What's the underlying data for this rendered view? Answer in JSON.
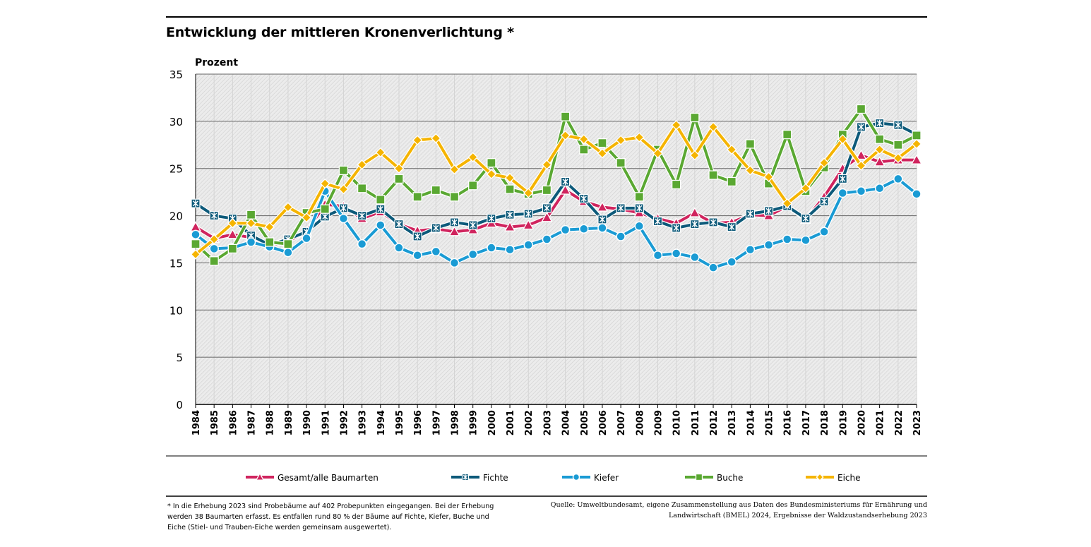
{
  "title": "Entwicklung der mittleren Kronenverlichtung *",
  "footnote": "* In die Erhebung 2023 sind Probebäume auf 402 Probepunkten eingegangen. Bei der Erhebung werden 38 Baumarten erfasst. Es entfallen rund 80 % der Bäume auf Fichte, Kiefer, Buche und Eiche (Stiel- und Trauben-Eiche werden gemeinsam ausgewertet).",
  "source": "Quelle: Umweltbundesamt, eigene Zusammenstellung aus Daten des Bundesministeriums für Ernährung und Landwirtschaft (BMEL) 2024, Ergebnisse der Waldzustandserhebung 2023",
  "chart_data": {
    "type": "line",
    "ylabel": "Prozent",
    "ylim": [
      0,
      35
    ],
    "yticks": [
      0,
      5,
      10,
      15,
      20,
      25,
      30,
      35
    ],
    "grid": true,
    "legend_position": "bottom",
    "x": [
      "1984",
      "1985",
      "1986",
      "1987",
      "1988",
      "1989",
      "1990",
      "1991",
      "1992",
      "1993",
      "1994",
      "1995",
      "1996",
      "1997",
      "1998",
      "1999",
      "2000",
      "2001",
      "2002",
      "2003",
      "2004",
      "2005",
      "2006",
      "2007",
      "2008",
      "2009",
      "2010",
      "2011",
      "2012",
      "2013",
      "2014",
      "2015",
      "2016",
      "2017",
      "2018",
      "2019",
      "2020",
      "2021",
      "2022",
      "2023"
    ],
    "series": [
      {
        "name": "Gesamt/alle Baumarten",
        "color": "#d0245e",
        "marker": "triangle",
        "values": [
          18.8,
          17.6,
          18.0,
          17.7,
          16.8,
          17.3,
          18.3,
          21.2,
          21.0,
          19.7,
          20.4,
          19.1,
          18.4,
          18.6,
          18.3,
          18.5,
          19.2,
          18.8,
          19.0,
          19.8,
          22.7,
          21.5,
          20.9,
          20.7,
          20.3,
          19.7,
          19.2,
          20.3,
          19.2,
          19.3,
          20.1,
          20.0,
          21.0,
          19.6,
          22.0,
          25.0,
          26.4,
          25.7,
          25.9,
          25.9
        ]
      },
      {
        "name": "Fichte",
        "color": "#0d5a7a",
        "marker": "star",
        "values": [
          21.3,
          20.0,
          19.7,
          17.9,
          16.9,
          17.5,
          18.3,
          19.9,
          20.8,
          20.0,
          20.7,
          19.1,
          17.8,
          18.7,
          19.3,
          19.0,
          19.7,
          20.1,
          20.2,
          20.8,
          23.6,
          21.8,
          19.6,
          20.8,
          20.8,
          19.4,
          18.7,
          19.1,
          19.3,
          18.8,
          20.2,
          20.5,
          21.0,
          19.7,
          21.5,
          23.9,
          29.4,
          29.8,
          29.6,
          28.6
        ]
      },
      {
        "name": "Kiefer",
        "color": "#1a9bd4",
        "marker": "circle",
        "values": [
          18.0,
          16.5,
          16.6,
          17.2,
          16.7,
          16.1,
          17.6,
          22.6,
          19.7,
          17.0,
          19.0,
          16.6,
          15.8,
          16.2,
          15.0,
          15.9,
          16.6,
          16.4,
          16.9,
          17.5,
          18.5,
          18.6,
          18.7,
          17.8,
          18.9,
          15.8,
          16.0,
          15.6,
          14.5,
          15.1,
          16.4,
          16.9,
          17.5,
          17.4,
          18.3,
          22.4,
          22.6,
          22.9,
          23.9,
          22.3
        ]
      },
      {
        "name": "Buche",
        "color": "#5aa832",
        "marker": "square",
        "values": [
          17.0,
          15.2,
          16.5,
          20.1,
          17.2,
          17.0,
          20.3,
          20.7,
          24.8,
          22.9,
          21.7,
          23.9,
          22.0,
          22.7,
          22.0,
          23.2,
          25.6,
          22.8,
          22.3,
          22.7,
          30.5,
          27.0,
          27.7,
          25.6,
          22.0,
          27.0,
          23.3,
          30.4,
          24.3,
          23.6,
          27.6,
          23.4,
          28.6,
          22.6,
          25.1,
          28.6,
          31.3,
          28.1,
          27.5,
          28.5
        ]
      },
      {
        "name": "Eiche",
        "color": "#f5b400",
        "marker": "diamond",
        "values": [
          15.9,
          17.5,
          19.2,
          19.2,
          18.8,
          20.9,
          19.8,
          23.4,
          22.8,
          25.4,
          26.7,
          25.0,
          28.0,
          28.2,
          24.9,
          26.2,
          24.4,
          24.0,
          22.4,
          25.4,
          28.5,
          28.1,
          26.6,
          28.0,
          28.3,
          26.6,
          29.6,
          26.4,
          29.4,
          27.0,
          24.8,
          24.1,
          21.3,
          22.9,
          25.6,
          28.1,
          25.3,
          27.0,
          26.1,
          27.6
        ]
      }
    ]
  }
}
